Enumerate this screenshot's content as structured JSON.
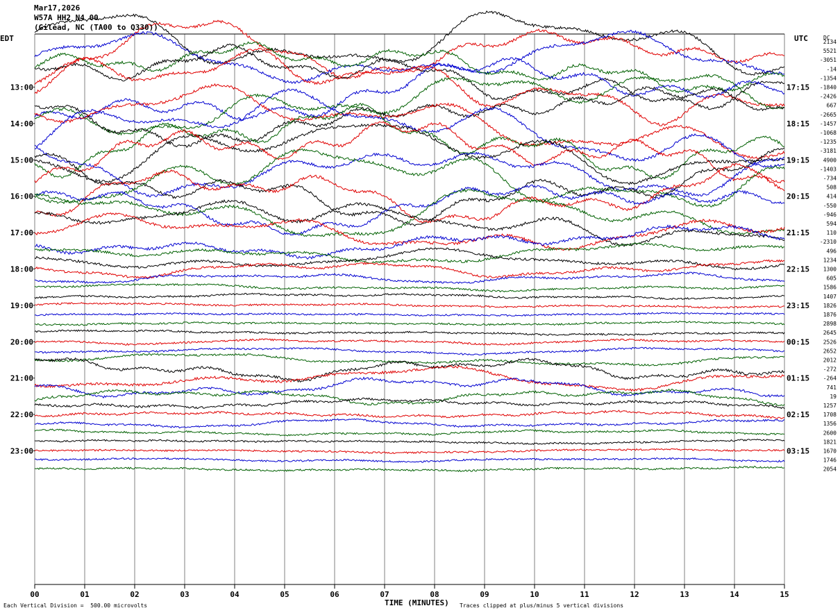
{
  "header": {
    "date": "Mar17,2026",
    "station": "W57A HH2 N4 00",
    "location": "(Gilead, NC (TA00 to Q330))"
  },
  "chart_data": {
    "type": "line",
    "title": "Mar17,2026 W57A HH2 N4 00 (Gilead, NC (TA00 to Q330))",
    "left_axis_label": "EDT",
    "right_axis_label": "UTC",
    "dc_label": "DC",
    "xlabel": "TIME (MINUTES)",
    "x_ticks": [
      "00",
      "01",
      "02",
      "03",
      "04",
      "05",
      "06",
      "07",
      "08",
      "09",
      "10",
      "11",
      "12",
      "13",
      "14",
      "15"
    ],
    "xlim": [
      0,
      15
    ],
    "rows_per_hour": 4,
    "minutes_per_row": 15,
    "left_hour_labels": [
      "13:00",
      "14:00",
      "15:00",
      "16:00",
      "17:00",
      "18:00",
      "19:00",
      "20:00",
      "21:00",
      "22:00",
      "23:00"
    ],
    "right_hour_labels": [
      "17:15",
      "18:15",
      "19:15",
      "20:15",
      "21:15",
      "22:15",
      "23:15",
      "00:15",
      "01:15",
      "02:15",
      "03:15"
    ],
    "trace_colors": [
      "#000000",
      "#e00000",
      "#0000d0",
      "#006000"
    ],
    "dc_offsets": [
      "2134",
      "5521",
      "-3051",
      "-14",
      "-1354",
      "-1840",
      "-2426",
      "667",
      "-2665",
      "-1457",
      "-1068",
      "-1235",
      "-3181",
      "4900",
      "-1403",
      "-734",
      "508",
      "414",
      "-550",
      "-946",
      "594",
      "110",
      "-2310",
      "496",
      "1234",
      "1300",
      "605",
      "1586",
      "1407",
      "1826",
      "1876",
      "2898",
      "2645",
      "2526",
      "2652",
      "2012",
      "-272",
      "-264",
      "741",
      "19",
      "1257",
      "1708",
      "1356",
      "2600",
      "1821",
      "1670",
      "1746",
      "2054"
    ],
    "trace_activity": [
      3.2,
      3.0,
      2.6,
      2.4,
      2.9,
      3.4,
      3.6,
      3.3,
      3.1,
      3.5,
      3.8,
      3.4,
      3.2,
      3.6,
      3.3,
      3.0,
      3.4,
      2.8,
      2.6,
      2.7,
      2.2,
      1.8,
      1.5,
      1.2,
      1.0,
      0.8,
      0.5,
      0.35,
      0.25,
      0.2,
      0.18,
      0.18,
      0.2,
      0.25,
      0.3,
      0.6,
      1.1,
      1.2,
      1.0,
      0.8,
      0.6,
      0.5,
      0.4,
      0.25,
      0.2,
      0.18,
      0.18,
      0.18
    ],
    "footer_left": "Each Vertical Division =  500.00 microvolts",
    "footer_right": "Traces clipped at plus/minus 5 vertical divisions"
  }
}
